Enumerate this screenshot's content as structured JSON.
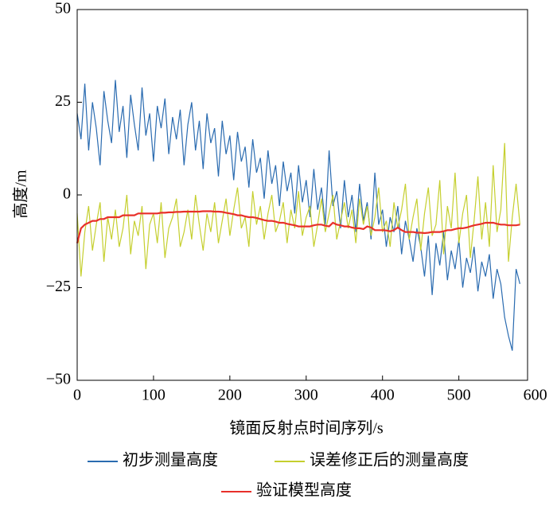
{
  "chart_data": {
    "type": "line",
    "x_label": "镜面反射点时间序列/s",
    "y_label": "高度/m",
    "x": [
      0,
      5,
      10,
      15,
      20,
      25,
      30,
      35,
      40,
      45,
      50,
      55,
      60,
      65,
      70,
      75,
      80,
      85,
      90,
      95,
      100,
      105,
      110,
      115,
      120,
      125,
      130,
      135,
      140,
      145,
      150,
      155,
      160,
      165,
      170,
      175,
      180,
      185,
      190,
      195,
      200,
      205,
      210,
      215,
      220,
      225,
      230,
      235,
      240,
      245,
      250,
      255,
      260,
      265,
      270,
      275,
      280,
      285,
      290,
      295,
      300,
      305,
      310,
      315,
      320,
      325,
      330,
      335,
      340,
      345,
      350,
      355,
      360,
      365,
      370,
      375,
      380,
      385,
      390,
      395,
      400,
      405,
      410,
      415,
      420,
      425,
      430,
      435,
      440,
      445,
      450,
      455,
      460,
      465,
      470,
      475,
      480,
      485,
      490,
      495,
      500,
      505,
      510,
      515,
      520,
      525,
      530,
      535,
      540,
      545,
      550,
      555,
      560,
      565,
      570,
      575,
      580
    ],
    "series": [
      {
        "name": "初步测量高度",
        "color": "#2a6bb0",
        "values": [
          22,
          15,
          30,
          12,
          25,
          18,
          8,
          28,
          20,
          14,
          31,
          17,
          24,
          10,
          27,
          19,
          12,
          29,
          16,
          22,
          9,
          24,
          18,
          26,
          11,
          21,
          15,
          23,
          8,
          19,
          25,
          12,
          20,
          7,
          22,
          14,
          18,
          5,
          20,
          11,
          16,
          4,
          17,
          9,
          13,
          2,
          15,
          6,
          10,
          -1,
          12,
          3,
          8,
          -3,
          9,
          1,
          6,
          -5,
          8,
          -2,
          4,
          -6,
          7,
          -4,
          2,
          -8,
          12,
          -3,
          1,
          -9,
          4,
          -6,
          0,
          -10,
          3,
          -7,
          -2,
          -12,
          6,
          -8,
          -4,
          -14,
          -6,
          -10,
          -3,
          -16,
          -7,
          -12,
          -18,
          -9,
          -14,
          -22,
          -11,
          -27,
          -13,
          -19,
          -10,
          -23,
          -15,
          -20,
          -12,
          -25,
          -17,
          -21,
          -14,
          -26,
          -18,
          -22,
          -16,
          -28,
          -20,
          -24,
          -33,
          -38,
          -42,
          -20,
          -24
        ]
      },
      {
        "name": "误差修正后的测量高度",
        "color": "#c5cf2e",
        "values": [
          -5,
          -22,
          -10,
          -3,
          -15,
          -8,
          -2,
          -18,
          -6,
          -12,
          -4,
          -14,
          -9,
          0,
          -16,
          -7,
          -11,
          -3,
          -20,
          -8,
          -5,
          -13,
          -2,
          -17,
          -9,
          -6,
          -1,
          -14,
          -10,
          -4,
          -12,
          0,
          -8,
          -15,
          -5,
          -10,
          -2,
          -13,
          -7,
          -1,
          -11,
          -4,
          2,
          -9,
          -6,
          -14,
          1,
          -8,
          -3,
          -12,
          -5,
          0,
          -10,
          -7,
          -2,
          -13,
          -4,
          -9,
          1,
          -11,
          -6,
          -3,
          -14,
          -8,
          -1,
          -10,
          -5,
          0,
          -12,
          -7,
          -2,
          -9,
          -4,
          -13,
          -1,
          -8,
          -3,
          -11,
          -6,
          2,
          -10,
          -7,
          -14,
          -2,
          -9,
          -4,
          3,
          -12,
          -6,
          -1,
          -15,
          -5,
          2,
          -11,
          -8,
          4,
          -16,
          -3,
          -9,
          6,
          -13,
          -5,
          0,
          -17,
          -7,
          5,
          -12,
          -2,
          -14,
          8,
          -10,
          -4,
          14,
          -18,
          -6,
          3,
          -8
        ]
      },
      {
        "name": "验证模型高度",
        "color": "#e8302a",
        "values": [
          -13,
          -9,
          -8,
          -7.5,
          -7,
          -7,
          -6.5,
          -6.5,
          -6,
          -6,
          -6,
          -6,
          -5.5,
          -5.5,
          -5.5,
          -5.5,
          -5,
          -5,
          -5,
          -5,
          -5,
          -5,
          -4.8,
          -4.8,
          -4.7,
          -4.7,
          -4.6,
          -4.6,
          -4.5,
          -4.5,
          -4.5,
          -4.5,
          -4.5,
          -4.4,
          -4.4,
          -4.4,
          -4.5,
          -4.5,
          -4.6,
          -4.8,
          -5,
          -5.2,
          -5.5,
          -5.5,
          -5.8,
          -6,
          -6,
          -6.2,
          -6.5,
          -6.8,
          -7,
          -7,
          -7.2,
          -7.5,
          -7.5,
          -7.8,
          -8,
          -8.2,
          -8.5,
          -8.5,
          -8.5,
          -8.5,
          -8.2,
          -8,
          -8,
          -8.3,
          -8.5,
          -7.5,
          -8,
          -8.2,
          -8.5,
          -8.5,
          -8.8,
          -9,
          -9,
          -9.2,
          -8.5,
          -8.8,
          -9.5,
          -9.5,
          -9.5,
          -9.6,
          -9.8,
          -9.5,
          -8.8,
          -9.5,
          -10,
          -10,
          -10,
          -10.2,
          -10.2,
          -10.3,
          -10.2,
          -10,
          -10,
          -10,
          -9.8,
          -9.5,
          -9.5,
          -9.2,
          -9,
          -9,
          -8.8,
          -8.5,
          -8.2,
          -8,
          -7.8,
          -7.5,
          -7.5,
          -7.5,
          -7.8,
          -8,
          -8,
          -8.2,
          -8.2,
          -8.2,
          -8
        ]
      }
    ],
    "xlim": [
      0,
      590
    ],
    "xticks": [
      0,
      100,
      200,
      300,
      400,
      500,
      600
    ],
    "ylim": [
      -50,
      50
    ],
    "yticks": [
      {
        "value": -50,
        "label": "−50"
      },
      {
        "value": -25,
        "label": "−25"
      },
      0,
      25,
      50
    ],
    "legend": "bottom"
  }
}
